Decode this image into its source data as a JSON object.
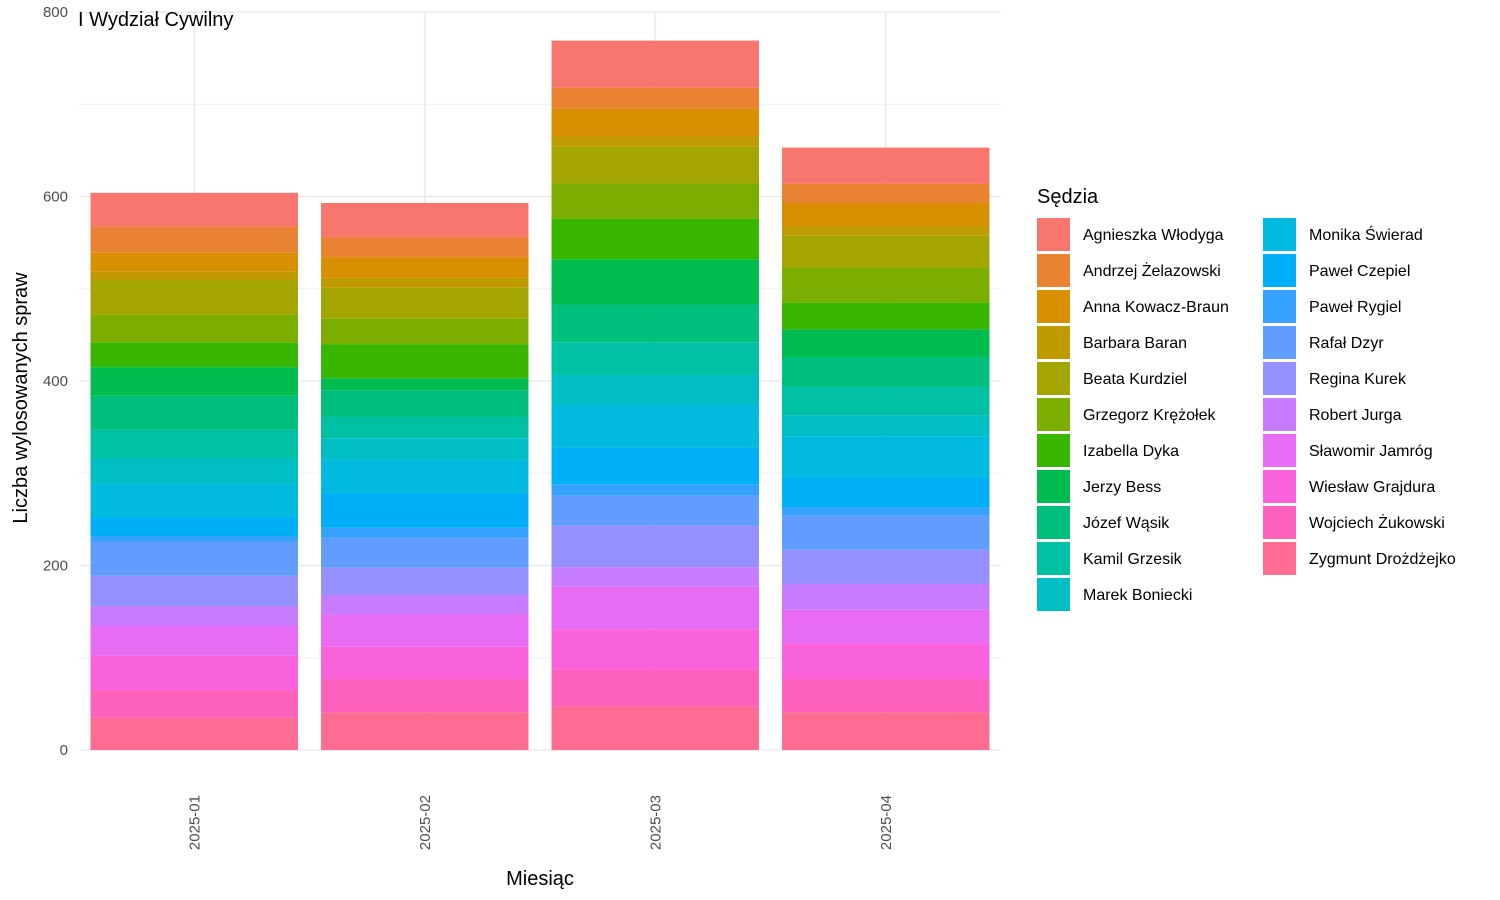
{
  "chart_data": {
    "type": "bar",
    "stacked": true,
    "title": "I Wydział Cywilny",
    "xlabel": "Miesiąc",
    "ylabel": "Liczba wylosowanych spraw",
    "ylim": [
      0,
      800
    ],
    "yticks": [
      0,
      200,
      400,
      600,
      800
    ],
    "grid": true,
    "legend_title": "Sędzia",
    "legend_position": "right",
    "categories": [
      "2025-01",
      "2025-02",
      "2025-03",
      "2025-04"
    ],
    "series": [
      {
        "name": "Agnieszka Włodyga",
        "color": "#F8766D",
        "values": [
          37,
          37,
          51,
          39
        ]
      },
      {
        "name": "Andrzej Żelazowski",
        "color": "#EA8331",
        "values": [
          28,
          22,
          23,
          21
        ]
      },
      {
        "name": "Anna Kowacz-Braun",
        "color": "#D89000",
        "values": [
          20,
          22,
          30,
          25
        ]
      },
      {
        "name": "Barbara Baran",
        "color": "#C09B00",
        "values": [
          10,
          11,
          11,
          10
        ]
      },
      {
        "name": "Beata Kurdziel",
        "color": "#A3A500",
        "values": [
          37,
          33,
          40,
          35
        ]
      },
      {
        "name": "Grzegorz Krężołek",
        "color": "#7CAE00",
        "values": [
          30,
          28,
          38,
          38
        ]
      },
      {
        "name": "Izabella Dyka",
        "color": "#39B600",
        "values": [
          27,
          37,
          44,
          29
        ]
      },
      {
        "name": "Jerzy Bess",
        "color": "#00BB4E",
        "values": [
          31,
          13,
          49,
          30
        ]
      },
      {
        "name": "Józef Wąsik",
        "color": "#00BF7D",
        "values": [
          37,
          29,
          41,
          32
        ]
      },
      {
        "name": "Kamil Grzesik",
        "color": "#00C1A3",
        "values": [
          31,
          23,
          35,
          31
        ]
      },
      {
        "name": "Marek Boniecki",
        "color": "#00BFC4",
        "values": [
          27,
          23,
          33,
          23
        ]
      },
      {
        "name": "Monika Świerad",
        "color": "#00BAE0",
        "values": [
          37,
          37,
          46,
          44
        ]
      },
      {
        "name": "Paweł Czepiel",
        "color": "#00B0F6",
        "values": [
          20,
          37,
          40,
          33
        ]
      },
      {
        "name": "Paweł Rygiel",
        "color": "#35A2FF",
        "values": [
          6,
          11,
          12,
          9
        ]
      },
      {
        "name": "Rafał Dzyr",
        "color": "#619CFF",
        "values": [
          37,
          32,
          33,
          37
        ]
      },
      {
        "name": "Regina Kurek",
        "color": "#9590FF",
        "values": [
          33,
          30,
          45,
          37
        ]
      },
      {
        "name": "Robert Jurga",
        "color": "#C77CFF",
        "values": [
          21,
          21,
          21,
          28
        ]
      },
      {
        "name": "Sławomir Jamróg",
        "color": "#E76BF3",
        "values": [
          33,
          35,
          46,
          37
        ]
      },
      {
        "name": "Wiesław Grajdura",
        "color": "#FA62DB",
        "values": [
          37,
          35,
          43,
          38
        ]
      },
      {
        "name": "Wojciech Żukowski",
        "color": "#FF62BC",
        "values": [
          30,
          36,
          41,
          36
        ]
      },
      {
        "name": "Zygmunt Drożdżejko",
        "color": "#FF6C91",
        "values": [
          35,
          41,
          47,
          41
        ]
      }
    ]
  }
}
